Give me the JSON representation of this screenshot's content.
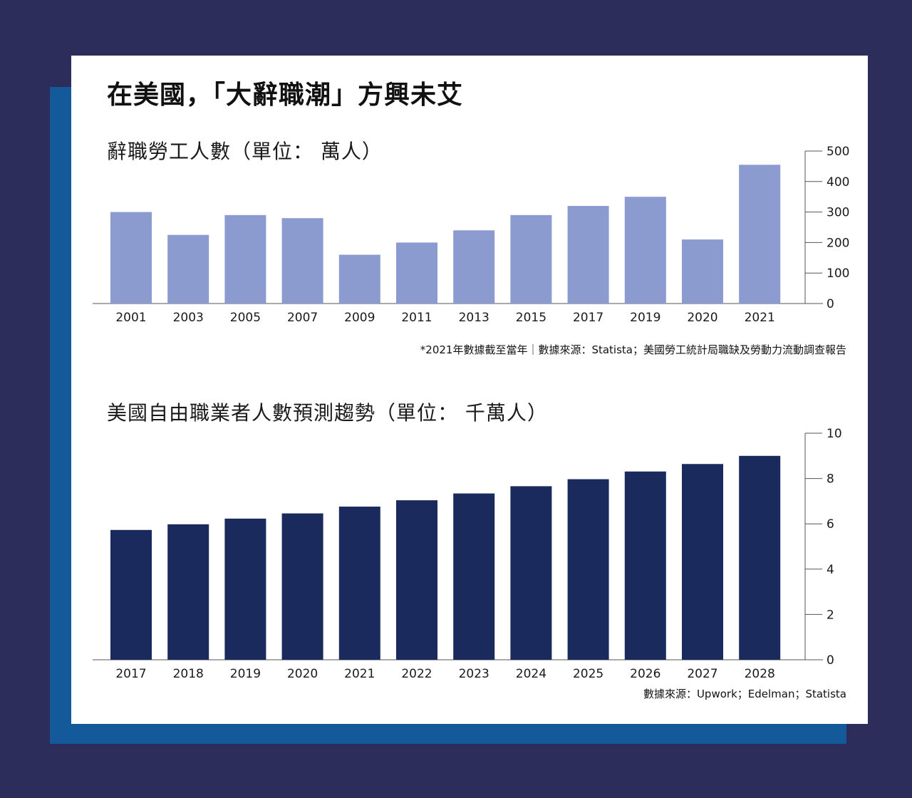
{
  "title": "在美國，「大辭職潮」方興未艾",
  "colors": {
    "background": "#2c2d5a",
    "shadow": "#145a9b",
    "card": "#ffffff",
    "bar1": "#8b9bd0",
    "bar2": "#1b2a5c",
    "axis": "#555555"
  },
  "chart_data": [
    {
      "type": "bar",
      "title": "辭職勞工人數（單位： 萬人）",
      "categories": [
        "2001",
        "2003",
        "2005",
        "2007",
        "2009",
        "2011",
        "2013",
        "2015",
        "2017",
        "2019",
        "2020",
        "2021"
      ],
      "values": [
        300,
        225,
        290,
        280,
        160,
        200,
        240,
        290,
        320,
        350,
        210,
        455
      ],
      "ylim": [
        0,
        500
      ],
      "yticks": [
        0,
        100,
        200,
        300,
        400,
        500
      ],
      "axis_side": "right",
      "grid": false,
      "source": "*2021年數據截至當年｜數據來源：Statista；美國勞工統計局職缺及勞動力流動調查報告"
    },
    {
      "type": "bar",
      "title": "美國自由職業者人數預測趨勢（單位： 千萬人）",
      "categories": [
        "2017",
        "2018",
        "2019",
        "2020",
        "2021",
        "2022",
        "2023",
        "2024",
        "2025",
        "2026",
        "2027",
        "2028"
      ],
      "values": [
        5.73,
        5.98,
        6.23,
        6.46,
        6.76,
        7.04,
        7.34,
        7.66,
        7.97,
        8.31,
        8.64,
        9.0
      ],
      "ylim": [
        0,
        10
      ],
      "yticks": [
        0,
        2,
        4,
        6,
        8,
        10
      ],
      "axis_side": "right",
      "grid": false,
      "source": "數據來源：Upwork；Edelman；Statista"
    }
  ]
}
